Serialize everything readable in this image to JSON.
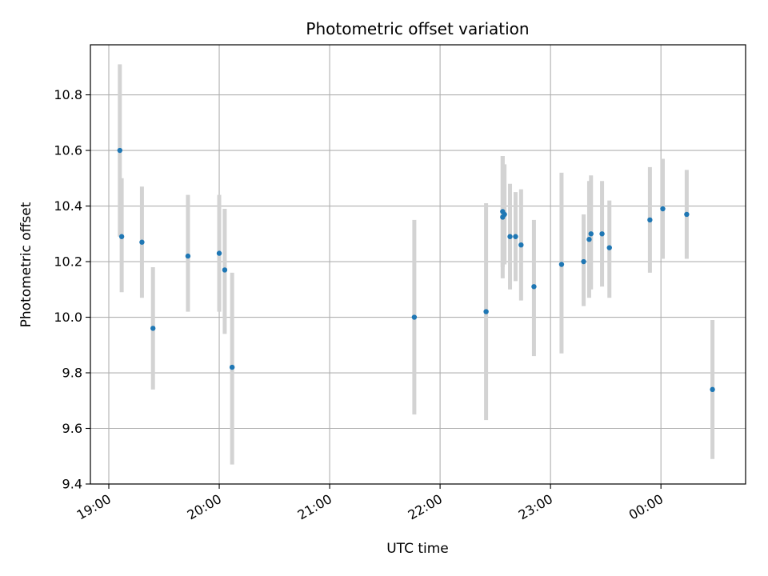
{
  "chart_data": {
    "type": "scatter",
    "title": "Photometric offset variation",
    "xlabel": "UTC time",
    "ylabel": "Photometric offset",
    "x_unit": "UTC time",
    "xlim": [
      "18:50",
      "00:46"
    ],
    "ylim": [
      9.4,
      10.98
    ],
    "x_ticks": [
      "19:00",
      "20:00",
      "21:00",
      "22:00",
      "23:00",
      "00:00"
    ],
    "y_ticks": [
      "9.4",
      "9.6",
      "9.8",
      "10.0",
      "10.2",
      "10.4",
      "10.6",
      "10.8"
    ],
    "grid": true,
    "colors": {
      "point": "#1f77b4",
      "errorbar": "#d3d3d3",
      "grid": "#b0b0b0"
    },
    "points": [
      {
        "x": "19:06",
        "y": 10.6,
        "ylo": 10.29,
        "yhi": 10.91
      },
      {
        "x": "19:07",
        "y": 10.29,
        "ylo": 10.09,
        "yhi": 10.5
      },
      {
        "x": "19:18",
        "y": 10.27,
        "ylo": 10.07,
        "yhi": 10.47
      },
      {
        "x": "19:24",
        "y": 9.96,
        "ylo": 9.74,
        "yhi": 10.18
      },
      {
        "x": "19:43",
        "y": 10.22,
        "ylo": 10.02,
        "yhi": 10.44
      },
      {
        "x": "20:00",
        "y": 10.23,
        "ylo": 10.02,
        "yhi": 10.44
      },
      {
        "x": "20:03",
        "y": 10.17,
        "ylo": 9.94,
        "yhi": 10.39
      },
      {
        "x": "20:07",
        "y": 9.82,
        "ylo": 9.47,
        "yhi": 10.16
      },
      {
        "x": "21:46",
        "y": 10.0,
        "ylo": 9.65,
        "yhi": 10.35
      },
      {
        "x": "22:25",
        "y": 10.02,
        "ylo": 9.63,
        "yhi": 10.41
      },
      {
        "x": "22:34",
        "y": 10.36,
        "ylo": 10.14,
        "yhi": 10.58
      },
      {
        "x": "22:34",
        "y": 10.38,
        "ylo": 10.18,
        "yhi": 10.58
      },
      {
        "x": "22:35",
        "y": 10.37,
        "ylo": 10.19,
        "yhi": 10.55
      },
      {
        "x": "22:38",
        "y": 10.29,
        "ylo": 10.1,
        "yhi": 10.48
      },
      {
        "x": "22:41",
        "y": 10.29,
        "ylo": 10.13,
        "yhi": 10.45
      },
      {
        "x": "22:44",
        "y": 10.26,
        "ylo": 10.06,
        "yhi": 10.46
      },
      {
        "x": "22:51",
        "y": 10.11,
        "ylo": 9.86,
        "yhi": 10.35
      },
      {
        "x": "23:06",
        "y": 10.19,
        "ylo": 9.87,
        "yhi": 10.52
      },
      {
        "x": "23:18",
        "y": 10.2,
        "ylo": 10.04,
        "yhi": 10.37
      },
      {
        "x": "23:21",
        "y": 10.28,
        "ylo": 10.07,
        "yhi": 10.49
      },
      {
        "x": "23:22",
        "y": 10.3,
        "ylo": 10.1,
        "yhi": 10.51
      },
      {
        "x": "23:28",
        "y": 10.3,
        "ylo": 10.11,
        "yhi": 10.49
      },
      {
        "x": "23:32",
        "y": 10.25,
        "ylo": 10.07,
        "yhi": 10.42
      },
      {
        "x": "23:54",
        "y": 10.35,
        "ylo": 10.16,
        "yhi": 10.54
      },
      {
        "x": "00:01",
        "y": 10.39,
        "ylo": 10.21,
        "yhi": 10.57
      },
      {
        "x": "00:14",
        "y": 10.37,
        "ylo": 10.21,
        "yhi": 10.53
      },
      {
        "x": "00:28",
        "y": 9.74,
        "ylo": 9.49,
        "yhi": 9.99
      }
    ]
  }
}
